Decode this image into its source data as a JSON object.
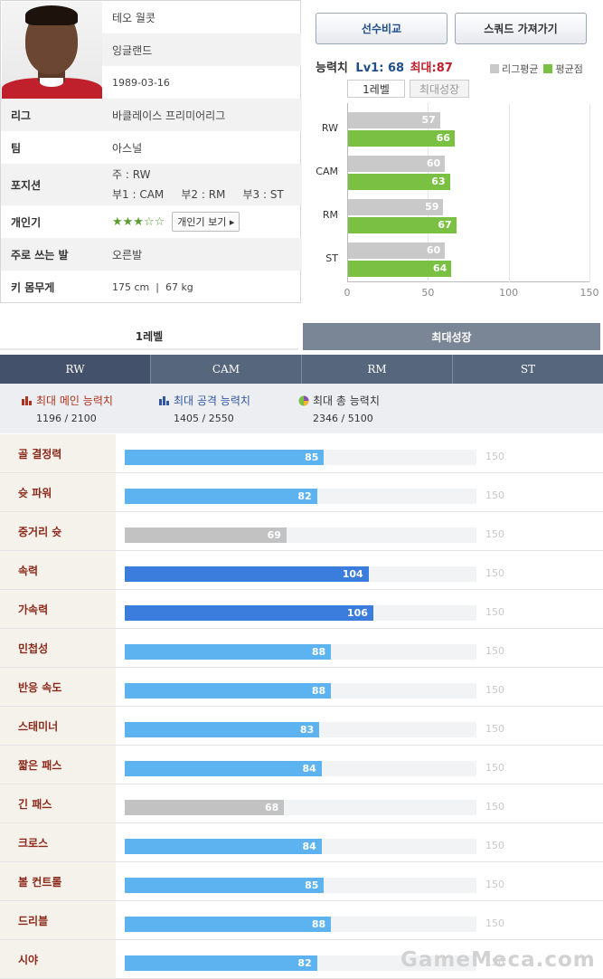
{
  "player": {
    "name": "테오 월콧",
    "nation": "잉글랜드",
    "birth": "1989-03-16"
  },
  "info": [
    {
      "label": "리그",
      "value": "바클레이스 프리미어리그"
    },
    {
      "label": "팀",
      "value": "아스널"
    },
    {
      "label": "포지션",
      "main": "주 : RW",
      "subs": "부1 : CAM     부2 : RM     부3 : ST"
    },
    {
      "label": "개인기",
      "stars": "★★★☆☆",
      "button": "개인기 보기 ▸"
    },
    {
      "label": "주로 쓰는 발",
      "value": "오른발"
    },
    {
      "label": "키 몸무게",
      "value": "175 cm  |  67 kg"
    }
  ],
  "buttons": {
    "compare": "선수비교",
    "squad": "스쿼드 가져가기"
  },
  "ability": {
    "label": "능력치",
    "lv1": "Lv1: 68",
    "max": "최대:87",
    "legend_league": "리그평균",
    "legend_avg": "평균점",
    "tab_lv1": "1레벨",
    "tab_max": "최대성장"
  },
  "colors": {
    "league": "#c9c9c9",
    "avg": "#7ac143",
    "bar_blue": "#5cb3f0",
    "bar_dark": "#3b7ddd",
    "bar_gray": "#c2c2c2"
  },
  "chart_data": {
    "type": "bar",
    "categories": [
      "RW",
      "CAM",
      "RM",
      "ST"
    ],
    "series": [
      {
        "name": "리그평균",
        "values": [
          57,
          60,
          59,
          60
        ]
      },
      {
        "name": "평균점",
        "values": [
          66,
          63,
          67,
          64
        ]
      }
    ],
    "xlim": [
      0,
      150
    ],
    "ticks": [
      "0",
      "50",
      "100",
      "150"
    ]
  },
  "level_tabs": {
    "lv1": "1레벨",
    "max": "최대성장"
  },
  "position_tabs": [
    "RW",
    "CAM",
    "RM",
    "ST"
  ],
  "summary": [
    {
      "title": "최대 메인 능력치",
      "value": "1196 / 2100",
      "color": "#b0321e"
    },
    {
      "title": "최대 공격 능력치",
      "value": "1405 / 2550",
      "color": "#2f55a4"
    },
    {
      "title": "최대 총 능력치",
      "value": "2346 / 5100",
      "color": "#333333"
    }
  ],
  "stats_max": "150",
  "stats": [
    {
      "name": "골 결정력",
      "value": 85,
      "kind": "blue"
    },
    {
      "name": "슛 파워",
      "value": 82,
      "kind": "blue"
    },
    {
      "name": "중거리 슛",
      "value": 69,
      "kind": "gray"
    },
    {
      "name": "속력",
      "value": 104,
      "kind": "dark"
    },
    {
      "name": "가속력",
      "value": 106,
      "kind": "dark"
    },
    {
      "name": "민첩성",
      "value": 88,
      "kind": "blue"
    },
    {
      "name": "반응 속도",
      "value": 88,
      "kind": "blue"
    },
    {
      "name": "스태미너",
      "value": 83,
      "kind": "blue"
    },
    {
      "name": "짧은 패스",
      "value": 84,
      "kind": "blue"
    },
    {
      "name": "긴 패스",
      "value": 68,
      "kind": "gray"
    },
    {
      "name": "크로스",
      "value": 84,
      "kind": "blue"
    },
    {
      "name": "볼 컨트롤",
      "value": 85,
      "kind": "blue"
    },
    {
      "name": "드리블",
      "value": 88,
      "kind": "blue"
    },
    {
      "name": "시야",
      "value": 82,
      "kind": "blue"
    }
  ],
  "watermark": "GameMeca.com"
}
